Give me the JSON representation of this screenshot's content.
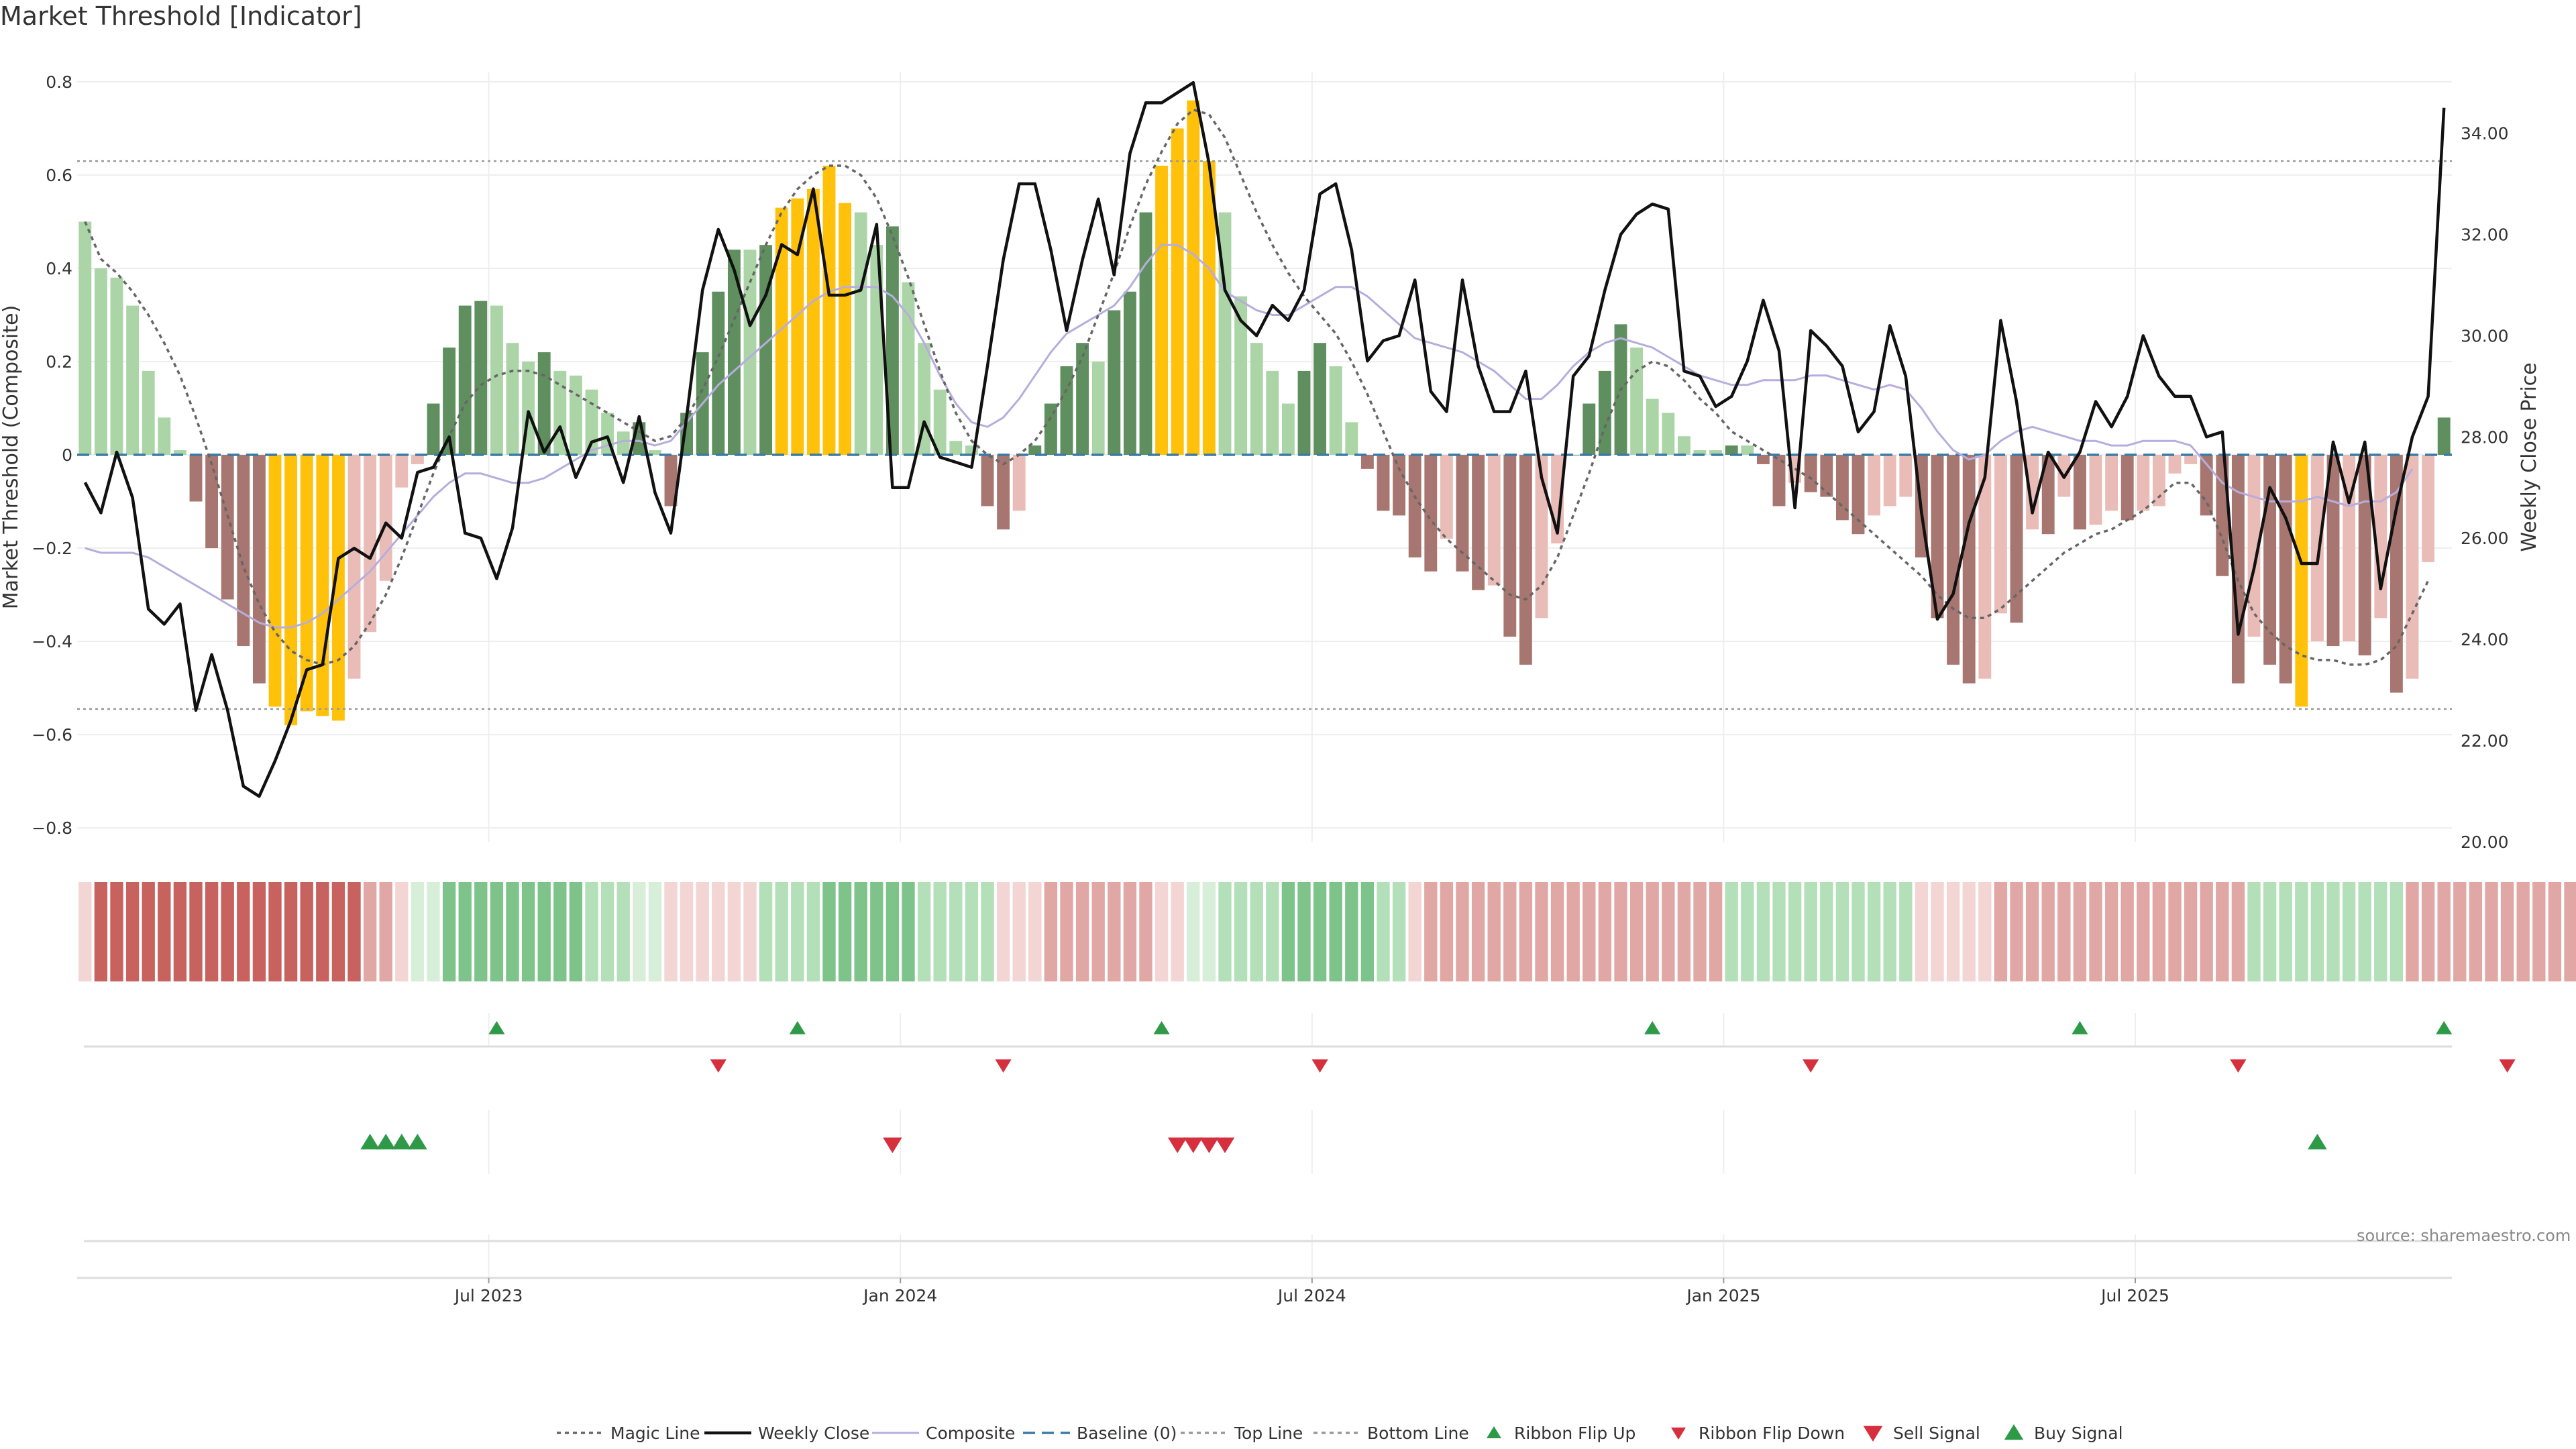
{
  "title": "Market Threshold [Indicator]",
  "source_note": "source: sharemaestro.com",
  "colors": {
    "pos_strong": "#5f8f5f",
    "pos_weak": "#acd5a7",
    "neg_strong": "#a87670",
    "neg_weak": "#eabcb7",
    "extreme": "#ffc10a",
    "magic": "#666666",
    "close": "#111111",
    "composite": "#b7addd",
    "baseline": "#3a7ca5",
    "threshold": "#999999",
    "up": "#2e9a48",
    "down": "#d6303e"
  },
  "chart_data": {
    "type": "bar",
    "title": "Market Threshold [Indicator]",
    "ylabel": "Market Threshold (Composite)",
    "y2label": "Weekly Close Price",
    "ylim": [
      -0.83,
      0.82
    ],
    "y2lim": [
      20.0,
      35.2
    ],
    "yticks": [
      "0.8",
      "0.6",
      "0.4",
      "0.2",
      "0",
      "−0.2",
      "−0.4",
      "−0.6",
      "−0.8"
    ],
    "yticks_values": [
      0.8,
      0.6,
      0.4,
      0.2,
      0,
      -0.2,
      -0.4,
      -0.6,
      -0.8
    ],
    "y2ticks": [
      "34.00",
      "32.00",
      "30.00",
      "28.00",
      "26.00",
      "24.00",
      "22.00",
      "20.00"
    ],
    "y2ticks_values": [
      34,
      32,
      30,
      28,
      26,
      24,
      22,
      20
    ],
    "x_start_week": -26,
    "xticks": [
      {
        "label": "Jul 2023",
        "week": 0
      },
      {
        "label": "Jan 2024",
        "week": 26
      },
      {
        "label": "Jul 2024",
        "week": 52
      },
      {
        "label": "Jan 2025",
        "week": 78
      },
      {
        "label": "Jul 2025",
        "week": 104
      }
    ],
    "top_line": 0.63,
    "bottom_line": -0.545,
    "baseline": 0,
    "series": [
      {
        "name": "Market Threshold (Composite) bars",
        "values": [
          0.5,
          0.4,
          0.38,
          0.32,
          0.18,
          0.08,
          0.01,
          -0.1,
          -0.2,
          -0.31,
          -0.41,
          -0.49,
          -0.54,
          -0.58,
          -0.55,
          -0.56,
          -0.57,
          -0.48,
          -0.38,
          -0.27,
          -0.07,
          -0.02,
          0.11,
          0.23,
          0.32,
          0.33,
          0.32,
          0.24,
          0.2,
          0.22,
          0.18,
          0.17,
          0.14,
          0.09,
          0.05,
          0.07,
          0.01,
          -0.11,
          0.09,
          0.22,
          0.35,
          0.44,
          0.44,
          0.45,
          0.53,
          0.55,
          0.57,
          0.62,
          0.54,
          0.52,
          0.45,
          0.49,
          0.37,
          0.24,
          0.14,
          0.03,
          0.02,
          -0.11,
          -0.16,
          -0.12,
          0.02,
          0.11,
          0.19,
          0.24,
          0.2,
          0.31,
          0.35,
          0.52,
          0.62,
          0.7,
          0.76,
          0.63,
          0.52,
          0.34,
          0.24,
          0.18,
          0.11,
          0.18,
          0.24,
          0.19,
          0.07,
          -0.03,
          -0.12,
          -0.13,
          -0.22,
          -0.25,
          -0.18,
          -0.25,
          -0.29,
          -0.28,
          -0.39,
          -0.45,
          -0.35,
          -0.19,
          0.0,
          0.11,
          0.18,
          0.28,
          0.23,
          0.12,
          0.09,
          0.04,
          0.01,
          0.01,
          0.02,
          0.02,
          -0.02,
          -0.11,
          -0.06,
          -0.08,
          -0.09,
          -0.14,
          -0.17,
          -0.13,
          -0.11,
          -0.09,
          -0.22,
          -0.35,
          -0.45,
          -0.49,
          -0.48,
          -0.34,
          -0.36,
          -0.16,
          -0.17,
          -0.09,
          -0.16,
          -0.15,
          -0.12,
          -0.14,
          -0.12,
          -0.11,
          -0.04,
          -0.02,
          -0.13,
          -0.26,
          -0.49,
          -0.39,
          -0.45,
          -0.49,
          -0.54,
          -0.4,
          -0.41,
          -0.4,
          -0.43,
          -0.35,
          -0.51,
          -0.48,
          -0.23,
          0.08
        ]
      },
      {
        "name": "Weekly Close",
        "values": [
          27.1,
          26.5,
          27.7,
          26.8,
          24.6,
          24.3,
          24.7,
          22.6,
          23.7,
          22.6,
          21.1,
          20.9,
          21.6,
          22.4,
          23.4,
          23.5,
          25.6,
          25.8,
          25.6,
          26.3,
          26.0,
          27.3,
          27.4,
          28.0,
          26.1,
          26.0,
          25.2,
          26.2,
          28.5,
          27.7,
          28.2,
          27.2,
          27.9,
          28.0,
          27.1,
          28.4,
          26.9,
          26.1,
          28.4,
          30.9,
          32.1,
          31.3,
          30.2,
          30.8,
          31.8,
          31.6,
          32.9,
          30.8,
          30.8,
          30.9,
          32.2,
          27.0,
          27.0,
          28.3,
          27.6,
          27.5,
          27.4,
          29.4,
          31.5,
          33.0,
          33.0,
          31.7,
          30.1,
          31.5,
          32.7,
          31.2,
          33.6,
          34.6,
          34.6,
          34.8,
          35.0,
          33.4,
          30.9,
          30.3,
          30.0,
          30.6,
          30.3,
          30.9,
          32.8,
          33.0,
          31.7,
          29.5,
          29.9,
          30.0,
          31.1,
          28.9,
          28.5,
          31.1,
          29.4,
          28.5,
          28.5,
          29.3,
          27.2,
          26.1,
          29.2,
          29.6,
          30.9,
          32.0,
          32.4,
          32.6,
          32.5,
          29.3,
          29.2,
          28.6,
          28.8,
          29.5,
          30.7,
          29.7,
          26.6,
          30.1,
          29.8,
          29.4,
          28.1,
          28.5,
          30.2,
          29.2,
          26.5,
          24.4,
          24.9,
          26.3,
          27.2,
          30.3,
          28.7,
          26.5,
          27.7,
          27.2,
          27.7,
          28.7,
          28.2,
          28.8,
          30.0,
          29.2,
          28.8,
          28.8,
          28.0,
          28.1,
          24.1,
          25.4,
          27.0,
          26.4,
          25.5,
          25.5,
          27.9,
          26.7,
          27.9,
          25.0,
          26.6,
          28.0,
          28.8,
          34.5
        ]
      },
      {
        "name": "Magic Line",
        "values": [
          0.5,
          0.42,
          0.39,
          0.35,
          0.3,
          0.24,
          0.17,
          0.08,
          -0.02,
          -0.13,
          -0.24,
          -0.32,
          -0.38,
          -0.42,
          -0.44,
          -0.45,
          -0.44,
          -0.41,
          -0.36,
          -0.3,
          -0.22,
          -0.13,
          -0.04,
          0.04,
          0.11,
          0.15,
          0.17,
          0.18,
          0.18,
          0.17,
          0.15,
          0.13,
          0.11,
          0.09,
          0.07,
          0.05,
          0.03,
          0.04,
          0.08,
          0.14,
          0.21,
          0.29,
          0.37,
          0.45,
          0.52,
          0.57,
          0.6,
          0.62,
          0.62,
          0.6,
          0.55,
          0.47,
          0.38,
          0.28,
          0.18,
          0.09,
          0.03,
          0.0,
          -0.02,
          0.0,
          0.03,
          0.08,
          0.14,
          0.21,
          0.3,
          0.39,
          0.49,
          0.58,
          0.65,
          0.71,
          0.74,
          0.73,
          0.68,
          0.6,
          0.52,
          0.45,
          0.39,
          0.34,
          0.3,
          0.26,
          0.2,
          0.13,
          0.05,
          -0.03,
          -0.09,
          -0.14,
          -0.18,
          -0.21,
          -0.24,
          -0.27,
          -0.3,
          -0.31,
          -0.28,
          -0.22,
          -0.13,
          -0.04,
          0.06,
          0.14,
          0.18,
          0.2,
          0.19,
          0.16,
          0.12,
          0.09,
          0.05,
          0.03,
          0.01,
          -0.01,
          -0.03,
          -0.05,
          -0.08,
          -0.11,
          -0.14,
          -0.17,
          -0.2,
          -0.23,
          -0.26,
          -0.3,
          -0.33,
          -0.35,
          -0.35,
          -0.33,
          -0.3,
          -0.27,
          -0.24,
          -0.21,
          -0.19,
          -0.17,
          -0.16,
          -0.14,
          -0.12,
          -0.09,
          -0.06,
          -0.06,
          -0.1,
          -0.18,
          -0.27,
          -0.34,
          -0.38,
          -0.41,
          -0.43,
          -0.44,
          -0.44,
          -0.45,
          -0.45,
          -0.44,
          -0.41,
          -0.34,
          -0.27
        ]
      },
      {
        "name": "Composite",
        "values": [
          -0.2,
          -0.21,
          -0.21,
          -0.21,
          -0.22,
          -0.24,
          -0.26,
          -0.28,
          -0.3,
          -0.32,
          -0.34,
          -0.36,
          -0.37,
          -0.37,
          -0.36,
          -0.34,
          -0.31,
          -0.28,
          -0.25,
          -0.21,
          -0.17,
          -0.13,
          -0.09,
          -0.06,
          -0.04,
          -0.04,
          -0.05,
          -0.06,
          -0.06,
          -0.05,
          -0.03,
          -0.01,
          0.01,
          0.02,
          0.03,
          0.03,
          0.02,
          0.03,
          0.07,
          0.11,
          0.15,
          0.18,
          0.21,
          0.24,
          0.27,
          0.3,
          0.33,
          0.35,
          0.36,
          0.36,
          0.36,
          0.34,
          0.3,
          0.24,
          0.17,
          0.11,
          0.07,
          0.06,
          0.08,
          0.12,
          0.17,
          0.22,
          0.26,
          0.28,
          0.3,
          0.32,
          0.36,
          0.41,
          0.45,
          0.45,
          0.43,
          0.4,
          0.35,
          0.33,
          0.31,
          0.3,
          0.3,
          0.32,
          0.34,
          0.36,
          0.36,
          0.34,
          0.31,
          0.28,
          0.25,
          0.24,
          0.23,
          0.22,
          0.2,
          0.18,
          0.15,
          0.12,
          0.12,
          0.15,
          0.19,
          0.22,
          0.24,
          0.25,
          0.24,
          0.23,
          0.21,
          0.19,
          0.17,
          0.16,
          0.15,
          0.15,
          0.16,
          0.16,
          0.16,
          0.17,
          0.17,
          0.16,
          0.15,
          0.14,
          0.15,
          0.14,
          0.1,
          0.05,
          0.01,
          -0.01,
          0.0,
          0.03,
          0.05,
          0.06,
          0.05,
          0.04,
          0.03,
          0.03,
          0.02,
          0.02,
          0.03,
          0.03,
          0.03,
          0.02,
          -0.02,
          -0.06,
          -0.08,
          -0.09,
          -0.1,
          -0.1,
          -0.1,
          -0.09,
          -0.1,
          -0.11,
          -0.1,
          -0.1,
          -0.08,
          -0.03
        ]
      }
    ],
    "ribbon": [
      "neg_w",
      "neg_s",
      "neg_s",
      "neg_s",
      "neg_s",
      "neg_s",
      "neg_s",
      "neg_s",
      "neg_s",
      "neg_s",
      "neg_s",
      "neg_s",
      "neg_s",
      "neg_s",
      "neg_s",
      "neg_s",
      "neg_s",
      "neg_s",
      "neg_m",
      "neg_m",
      "neg_w",
      "pos_w",
      "pos_w",
      "pos_s",
      "pos_s",
      "pos_s",
      "pos_s",
      "pos_s",
      "pos_s",
      "pos_s",
      "pos_s",
      "pos_s",
      "pos_m",
      "pos_m",
      "pos_m",
      "pos_w",
      "pos_w",
      "neg_w",
      "neg_w",
      "neg_w",
      "neg_w",
      "neg_w",
      "neg_w",
      "pos_m",
      "pos_m",
      "pos_m",
      "pos_m",
      "pos_s",
      "pos_s",
      "pos_s",
      "pos_s",
      "pos_s",
      "pos_s",
      "pos_m",
      "pos_m",
      "pos_m",
      "pos_m",
      "pos_m",
      "neg_w",
      "neg_w",
      "neg_w",
      "neg_m",
      "neg_m",
      "neg_m",
      "neg_m",
      "neg_m",
      "neg_m",
      "neg_m",
      "neg_w",
      "neg_w",
      "pos_w",
      "pos_w",
      "pos_m",
      "pos_m",
      "pos_m",
      "pos_m",
      "pos_s",
      "pos_s",
      "pos_s",
      "pos_s",
      "pos_s",
      "pos_s",
      "pos_m",
      "pos_m",
      "neg_w",
      "neg_m",
      "neg_m",
      "neg_m",
      "neg_m",
      "neg_m",
      "neg_m",
      "neg_m",
      "neg_m",
      "neg_m",
      "neg_m",
      "neg_m",
      "neg_m",
      "neg_m",
      "neg_m",
      "neg_m",
      "neg_m",
      "neg_m",
      "neg_m",
      "neg_m",
      "pos_m",
      "pos_m",
      "pos_m",
      "pos_m",
      "pos_m",
      "pos_m",
      "pos_m",
      "pos_m",
      "pos_m",
      "pos_m",
      "pos_m",
      "pos_m",
      "neg_w",
      "neg_w",
      "neg_w",
      "neg_w",
      "neg_w",
      "neg_m",
      "neg_m",
      "neg_m",
      "neg_m",
      "neg_m",
      "neg_m",
      "neg_m",
      "neg_m",
      "neg_m",
      "neg_m",
      "neg_m",
      "neg_m",
      "neg_m",
      "neg_m",
      "neg_m",
      "neg_m",
      "pos_m",
      "pos_m",
      "pos_m",
      "pos_m",
      "pos_m",
      "pos_m",
      "pos_m",
      "pos_m",
      "pos_m",
      "pos_m",
      "neg_m",
      "neg_m",
      "neg_m",
      "neg_m",
      "neg_m",
      "neg_m",
      "neg_m",
      "neg_m",
      "neg_m",
      "neg_m",
      "neg_m",
      "neg_m",
      "neg_m",
      "neg_m",
      "pos_m"
    ],
    "ribbon_colors": {
      "neg_s": "#c8625e",
      "neg_m": "#e0a7a4",
      "neg_w": "#f3d5d4",
      "pos_s": "#7ec48a",
      "pos_m": "#b3dfb9",
      "pos_w": "#d7eed9"
    },
    "ribbon_flip_up": [
      0,
      19,
      42,
      73,
      100,
      123
    ],
    "ribbon_flip_down": [
      14,
      32,
      52,
      83,
      110,
      127
    ],
    "buy_signal": [
      -8,
      -7,
      -6,
      -5,
      115
    ],
    "sell_signal": [
      25,
      43,
      44,
      45,
      46
    ]
  },
  "legend": [
    {
      "label": "Magic Line",
      "kind": "dotted",
      "color": "#666666"
    },
    {
      "label": "Weekly Close",
      "kind": "solid",
      "color": "#111111"
    },
    {
      "label": "Composite",
      "kind": "thin",
      "color": "#b7addd"
    },
    {
      "label": "Baseline (0)",
      "kind": "dashed",
      "color": "#3a7ca5"
    },
    {
      "label": "Top Line",
      "kind": "dotted",
      "color": "#999999"
    },
    {
      "label": "Bottom Line",
      "kind": "dotted",
      "color": "#999999"
    },
    {
      "label": "Ribbon Flip Up",
      "kind": "up",
      "color": "#2e9a48"
    },
    {
      "label": "Ribbon Flip Down",
      "kind": "down",
      "color": "#d6303e"
    },
    {
      "label": "Sell Signal",
      "kind": "down-big",
      "color": "#d6303e"
    },
    {
      "label": "Buy Signal",
      "kind": "up-big",
      "color": "#2e9a48"
    }
  ]
}
